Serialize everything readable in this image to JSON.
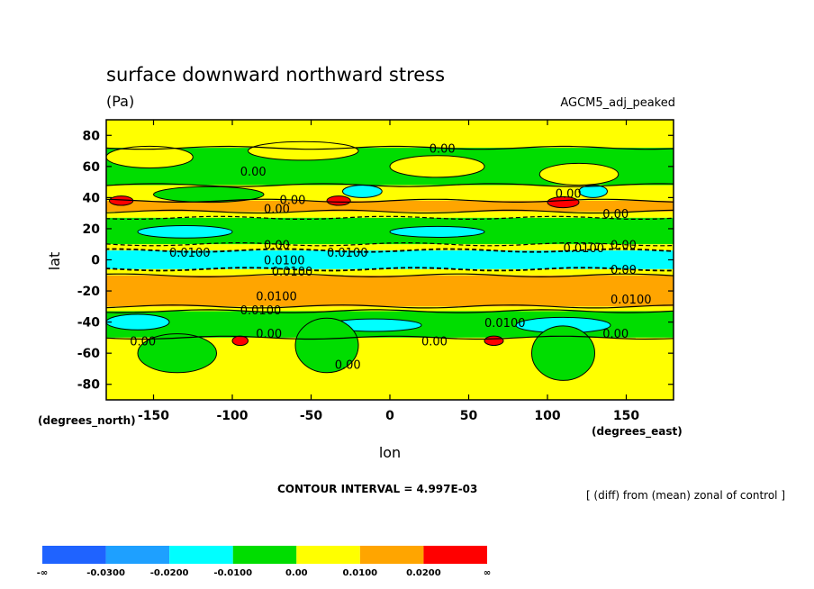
{
  "chart_data": {
    "type": "heatmap",
    "title": "surface downward northward stress",
    "units": "(Pa)",
    "dataset": "AGCM5_adj_peaked",
    "xlabel": "lon",
    "ylabel": "lat",
    "x_units_label": "(degrees_east)",
    "y_units_label": "(degrees_north)",
    "xlim": [
      -180,
      180
    ],
    "ylim": [
      -90,
      90
    ],
    "x_ticks": [
      -150,
      -100,
      -50,
      0,
      50,
      100,
      150
    ],
    "y_ticks": [
      80,
      60,
      40,
      20,
      0,
      -20,
      -40,
      -60,
      -80
    ],
    "contour_interval_text": "CONTOUR INTERVAL = 4.997E-03",
    "note": "[ (diff) from (mean) zonal of control ]",
    "colorbar": {
      "colors": [
        "#1f63ff",
        "#1ea0ff",
        "#00ffff",
        "#00dd00",
        "#ffff00",
        "#ffa500",
        "#ff0000"
      ],
      "labels": [
        "-∞",
        "-0.0300",
        "-0.0200",
        "-0.0100",
        "0.00",
        "0.0100",
        "0.0200",
        "∞"
      ]
    },
    "bands": [
      {
        "lat": [
          72,
          90
        ],
        "level": "0.00"
      },
      {
        "lat": [
          48,
          72
        ],
        "level": "-0.0100"
      },
      {
        "lat": [
          38,
          48
        ],
        "level": "0.00"
      },
      {
        "lat": [
          31,
          38
        ],
        "level": "0.0100"
      },
      {
        "lat": [
          27,
          31
        ],
        "level": "0.00"
      },
      {
        "lat": [
          10,
          27
        ],
        "level": "-0.0100"
      },
      {
        "lat": [
          6,
          10
        ],
        "level": "0.00"
      },
      {
        "lat": [
          -6,
          6
        ],
        "level": "-0.0200"
      },
      {
        "lat": [
          -10,
          -6
        ],
        "level": "0.00"
      },
      {
        "lat": [
          -30,
          -10
        ],
        "level": "0.0100"
      },
      {
        "lat": [
          -33,
          -30
        ],
        "level": "0.00"
      },
      {
        "lat": [
          -50,
          -33
        ],
        "level": "-0.0100"
      },
      {
        "lat": [
          -90,
          -50
        ],
        "level": "0.00"
      }
    ],
    "patches": [
      {
        "lon": -180,
        "lat": 66,
        "w": 55,
        "h": 14,
        "level": "0.00"
      },
      {
        "lon": -90,
        "lat": 70,
        "w": 70,
        "h": 12,
        "level": "0.00"
      },
      {
        "lon": 0,
        "lat": 60,
        "w": 60,
        "h": 14,
        "level": "0.00"
      },
      {
        "lon": 95,
        "lat": 55,
        "w": 50,
        "h": 14,
        "level": "0.00"
      },
      {
        "lon": -150,
        "lat": 42,
        "w": 70,
        "h": 10,
        "level": "-0.0100"
      },
      {
        "lon": -30,
        "lat": 44,
        "w": 25,
        "h": 8,
        "level": "-0.0200"
      },
      {
        "lon": 120,
        "lat": 44,
        "w": 18,
        "h": 8,
        "level": "-0.0200"
      },
      {
        "lon": -178,
        "lat": 38,
        "w": 15,
        "h": 6,
        "level": "0.0200"
      },
      {
        "lon": -40,
        "lat": 38,
        "w": 15,
        "h": 6,
        "level": "0.0200"
      },
      {
        "lon": 100,
        "lat": 37,
        "w": 20,
        "h": 7,
        "level": "0.0200"
      },
      {
        "lon": -160,
        "lat": 18,
        "w": 60,
        "h": 8,
        "level": "-0.0200"
      },
      {
        "lon": 0,
        "lat": 18,
        "w": 60,
        "h": 7,
        "level": "-0.0200"
      },
      {
        "lon": -180,
        "lat": -40,
        "w": 40,
        "h": 10,
        "level": "-0.0200"
      },
      {
        "lon": -40,
        "lat": -42,
        "w": 60,
        "h": 8,
        "level": "-0.0200"
      },
      {
        "lon": 80,
        "lat": -42,
        "w": 60,
        "h": 10,
        "level": "-0.0200"
      },
      {
        "lon": -160,
        "lat": -60,
        "w": 50,
        "h": 25,
        "level": "-0.0100"
      },
      {
        "lon": -60,
        "lat": -55,
        "w": 40,
        "h": 35,
        "level": "-0.0100"
      },
      {
        "lon": 90,
        "lat": -60,
        "w": 40,
        "h": 35,
        "level": "-0.0100"
      },
      {
        "lon": 60,
        "lat": -52,
        "w": 12,
        "h": 6,
        "level": "0.0200"
      },
      {
        "lon": -100,
        "lat": -52,
        "w": 10,
        "h": 6,
        "level": "0.0200"
      }
    ],
    "contour_labels": [
      {
        "lon": -95,
        "lat": 54,
        "text": "0.00"
      },
      {
        "lon": 25,
        "lat": 69,
        "text": "0.00"
      },
      {
        "lon": -70,
        "lat": 36,
        "text": "0.00"
      },
      {
        "lon": -80,
        "lat": 30,
        "text": "0.00"
      },
      {
        "lon": 105,
        "lat": 40,
        "text": "0.00"
      },
      {
        "lon": 135,
        "lat": 27,
        "text": "0.00"
      },
      {
        "lon": -140,
        "lat": 2,
        "text": "0.0100"
      },
      {
        "lon": -40,
        "lat": 2,
        "text": "0.0100"
      },
      {
        "lon": 110,
        "lat": 5,
        "text": "0.0100"
      },
      {
        "lon": -80,
        "lat": 7,
        "text": "0.00"
      },
      {
        "lon": 140,
        "lat": 7,
        "text": "0.00"
      },
      {
        "lon": -80,
        "lat": -3,
        "text": "0.0100"
      },
      {
        "lon": -75,
        "lat": -10,
        "text": "0.0100"
      },
      {
        "lon": 140,
        "lat": -9,
        "text": "0.00"
      },
      {
        "lon": -85,
        "lat": -26,
        "text": "0.0100"
      },
      {
        "lon": -95,
        "lat": -35,
        "text": "0.0100"
      },
      {
        "lon": 140,
        "lat": -28,
        "text": "0.0100"
      },
      {
        "lon": 60,
        "lat": -43,
        "text": "0.0100"
      },
      {
        "lon": -165,
        "lat": -55,
        "text": "0.00"
      },
      {
        "lon": -85,
        "lat": -50,
        "text": "0.00"
      },
      {
        "lon": 20,
        "lat": -55,
        "text": "0.00"
      },
      {
        "lon": 135,
        "lat": -50,
        "text": "0.00"
      },
      {
        "lon": -35,
        "lat": -70,
        "text": "0.00"
      }
    ]
  }
}
